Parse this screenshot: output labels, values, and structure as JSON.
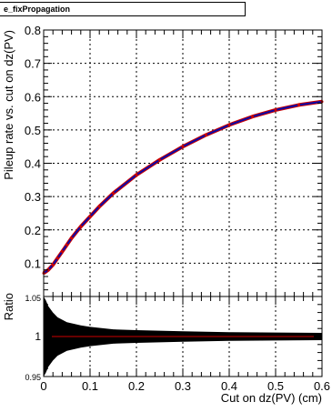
{
  "legend": {
    "text": "e_fixPropagation"
  },
  "chart_data": [
    {
      "type": "line",
      "panel": "top",
      "ylabel": "Pileup rate vs. cut on dz(PV)",
      "xlim": [
        0,
        0.6
      ],
      "ylim": [
        0,
        0.8
      ],
      "yticks": [
        0.1,
        0.2,
        0.3,
        0.4,
        0.5,
        0.6,
        0.7,
        0.8
      ],
      "grid": true,
      "colors": {
        "line": "#0a0aa8",
        "markers": "#cc0000"
      },
      "series": [
        {
          "x": [
            0.0,
            0.01,
            0.02,
            0.03,
            0.04,
            0.05,
            0.06,
            0.08,
            0.1,
            0.12,
            0.15,
            0.2,
            0.25,
            0.3,
            0.35,
            0.4,
            0.45,
            0.5,
            0.55,
            0.6
          ],
          "values": [
            0.07,
            0.08,
            0.095,
            0.115,
            0.135,
            0.155,
            0.175,
            0.21,
            0.24,
            0.27,
            0.31,
            0.365,
            0.41,
            0.45,
            0.485,
            0.515,
            0.54,
            0.56,
            0.575,
            0.585
          ]
        }
      ]
    },
    {
      "type": "area",
      "panel": "bottom",
      "xlabel": "Cut on dz(PV) (cm)",
      "ylabel": "Ratio",
      "xlim": [
        0,
        0.6
      ],
      "ylim": [
        0.95,
        1.05
      ],
      "yticks": [
        "0.95",
        "1",
        "1.05"
      ],
      "xticks": [
        "0",
        "0.1",
        "0.2",
        "0.3",
        "0.4",
        "0.5",
        "0.6"
      ],
      "grid": true,
      "colors": {
        "band": "#000000",
        "ratio": "#cc0000"
      },
      "ratio": 1.0,
      "band": {
        "x": [
          0.0,
          0.005,
          0.01,
          0.02,
          0.03,
          0.05,
          0.08,
          0.1,
          0.15,
          0.2,
          0.3,
          0.4,
          0.5,
          0.6
        ],
        "halfwidth": [
          0.05,
          0.045,
          0.038,
          0.03,
          0.024,
          0.018,
          0.014,
          0.012,
          0.009,
          0.008,
          0.0065,
          0.0055,
          0.005,
          0.0045
        ]
      }
    }
  ]
}
